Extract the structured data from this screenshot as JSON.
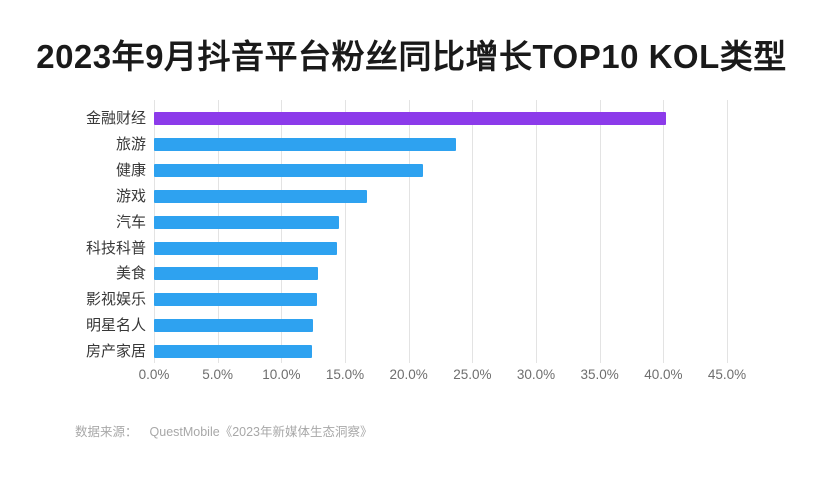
{
  "title": "2023年9月抖音平台粉丝同比增长TOP10 KOL类型",
  "source": {
    "prefix": "数据来源：",
    "text": "QuestMobile《2023年新媒体生态洞察》"
  },
  "chart_data": {
    "type": "bar",
    "orientation": "horizontal",
    "title": "2023年9月抖音平台粉丝同比增长TOP10 KOL类型",
    "categories": [
      "金融财经",
      "旅游",
      "健康",
      "游戏",
      "汽车",
      "科技科普",
      "美食",
      "影视娱乐",
      "明星名人",
      "房产家居"
    ],
    "values": [
      40.2,
      23.7,
      21.1,
      16.7,
      14.5,
      14.4,
      12.9,
      12.8,
      12.5,
      12.4
    ],
    "unit": "%",
    "xlabel": "",
    "ylabel": "",
    "xlim": [
      0,
      45
    ],
    "x_ticks": [
      "0.0%",
      "5.0%",
      "10.0%",
      "15.0%",
      "20.0%",
      "25.0%",
      "30.0%",
      "35.0%",
      "40.0%",
      "45.0%"
    ],
    "grid": "vertical",
    "legend": "none",
    "highlight_index": 0,
    "colors": {
      "highlight_bar": "#8C3BEA",
      "bar": "#2EA2F0",
      "gridline": "#e3e3e3",
      "title_text": "#1a1a1a",
      "category_text": "#383838",
      "tick_text": "#6e6e6e",
      "source_text": "#a8a8a8"
    }
  }
}
